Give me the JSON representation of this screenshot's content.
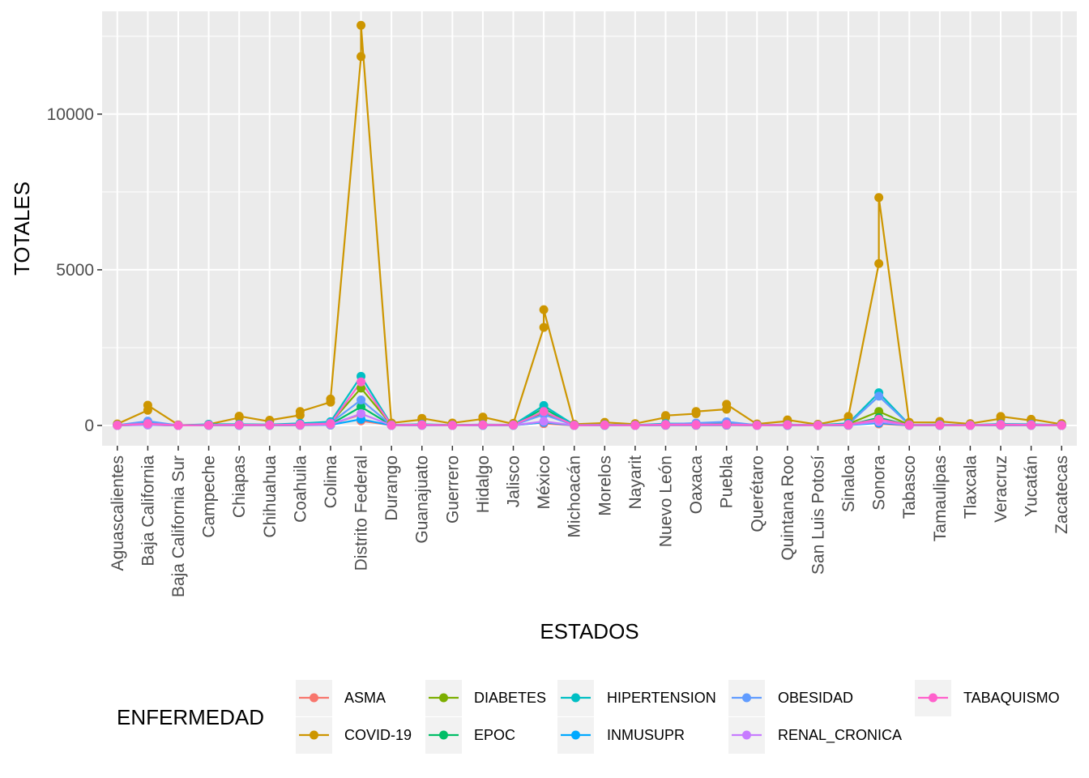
{
  "chart_data": {
    "type": "line",
    "xlabel": "ESTADOS",
    "ylabel": "TOTALES",
    "ylim": [
      -650,
      13300
    ],
    "yticks": [
      0,
      5000,
      10000
    ],
    "ytick_labels": [
      "0",
      "5000",
      "10000"
    ],
    "grid": true,
    "legend_title": "ENFERMEDAD",
    "legend_position": "bottom",
    "categories": [
      "Aguascalientes",
      "Baja California",
      "Baja California Sur",
      "Campeche",
      "Chiapas",
      "Chihuahua",
      "Coahuila",
      "Colima",
      "Distrito Federal",
      "Durango",
      "Guanajuato",
      "Guerrero",
      "Hidalgo",
      "Jalisco",
      "México",
      "Michoacán",
      "Morelos",
      "Nayarit",
      "Nuevo León",
      "Oaxaca",
      "Puebla",
      "Querétaro",
      "Quintana Roo",
      "San Luis Potosí",
      "Sinaloa",
      "Sonora",
      "Tabasco",
      "Tamaulipas",
      "Tlaxcala",
      "Veracruz",
      "Yucatán",
      "Zacatecas"
    ],
    "series": [
      {
        "name": "ASMA",
        "color": "#F8766D",
        "values": [
          [
            2,
            6
          ],
          [
            25,
            20
          ],
          [
            2,
            3
          ],
          [
            3,
            5
          ],
          [
            5,
            6
          ],
          [
            3,
            4
          ],
          [
            5,
            10
          ],
          [
            15,
            40
          ],
          [
            350,
            150
          ],
          [
            5,
            4
          ],
          [
            5,
            6
          ],
          [
            2,
            3
          ],
          [
            4,
            5
          ],
          [
            3,
            4
          ],
          [
            100,
            60
          ],
          [
            2,
            3
          ],
          [
            3,
            3
          ],
          [
            2,
            2
          ],
          [
            5,
            6
          ],
          [
            5,
            6
          ],
          [
            8,
            10
          ],
          [
            3,
            3
          ],
          [
            4,
            5
          ],
          [
            2,
            3
          ],
          [
            5,
            6
          ],
          [
            150,
            50
          ],
          [
            3,
            4
          ],
          [
            3,
            3
          ],
          [
            2,
            2
          ],
          [
            5,
            6
          ],
          [
            4,
            4
          ],
          [
            2,
            2
          ]
        ]
      },
      {
        "name": "COVID-19",
        "color": "#CD9600",
        "values": [
          [
            30,
            50
          ],
          [
            490,
            650
          ],
          [
            20,
            10
          ],
          [
            30,
            40
          ],
          [
            250,
            300
          ],
          [
            130,
            170
          ],
          [
            330,
            450
          ],
          [
            750,
            850
          ],
          [
            11850,
            12850
          ],
          [
            60,
            80
          ],
          [
            190,
            230
          ],
          [
            60,
            80
          ],
          [
            210,
            270
          ],
          [
            50,
            70
          ],
          [
            3150,
            3720
          ],
          [
            30,
            40
          ],
          [
            80,
            100
          ],
          [
            40,
            60
          ],
          [
            260,
            320
          ],
          [
            380,
            450
          ],
          [
            520,
            680
          ],
          [
            40,
            50
          ],
          [
            140,
            180
          ],
          [
            30,
            40
          ],
          [
            230,
            290
          ],
          [
            5200,
            7320
          ],
          [
            70,
            100
          ],
          [
            100,
            130
          ],
          [
            50,
            60
          ],
          [
            220,
            290
          ],
          [
            160,
            200
          ],
          [
            40,
            60
          ]
        ]
      },
      {
        "name": "DIABETES",
        "color": "#7CAE00",
        "values": [
          [
            10
          ],
          [
            60
          ],
          [
            5
          ],
          [
            20
          ],
          [
            30
          ],
          [
            25
          ],
          [
            50
          ],
          [
            80
          ],
          [
            1200
          ],
          [
            15
          ],
          [
            30
          ],
          [
            10
          ],
          [
            25
          ],
          [
            15
          ],
          [
            400
          ],
          [
            10
          ],
          [
            20
          ],
          [
            10
          ],
          [
            40
          ],
          [
            40
          ],
          [
            60
          ],
          [
            10
          ],
          [
            20
          ],
          [
            10
          ],
          [
            50
          ],
          [
            450
          ],
          [
            20
          ],
          [
            20
          ],
          [
            10
          ],
          [
            40
          ],
          [
            30
          ],
          [
            10
          ]
        ]
      },
      {
        "name": "EPOC",
        "color": "#00BE67",
        "values": [
          [
            5
          ],
          [
            30
          ],
          [
            3
          ],
          [
            10
          ],
          [
            15
          ],
          [
            10
          ],
          [
            20
          ],
          [
            40
          ],
          [
            600
          ],
          [
            5
          ],
          [
            15
          ],
          [
            5
          ],
          [
            10
          ],
          [
            10
          ],
          [
            550
          ],
          [
            5
          ],
          [
            10
          ],
          [
            5
          ],
          [
            20
          ],
          [
            20
          ],
          [
            30
          ],
          [
            5
          ],
          [
            10
          ],
          [
            5
          ],
          [
            20
          ],
          [
            250
          ],
          [
            10
          ],
          [
            10
          ],
          [
            5
          ],
          [
            20
          ],
          [
            15
          ],
          [
            5
          ]
        ]
      },
      {
        "name": "HIPERTENSION",
        "color": "#00BFC4",
        "values": [
          [
            15
          ],
          [
            80
          ],
          [
            8
          ],
          [
            40
          ],
          [
            40
          ],
          [
            30
          ],
          [
            70
          ],
          [
            120
          ],
          [
            1580
          ],
          [
            20
          ],
          [
            40
          ],
          [
            15
          ],
          [
            30
          ],
          [
            20
          ],
          [
            640
          ],
          [
            15
          ],
          [
            25
          ],
          [
            15
          ],
          [
            60
          ],
          [
            60
          ],
          [
            90
          ],
          [
            15
          ],
          [
            30
          ],
          [
            15
          ],
          [
            70
          ],
          [
            1050
          ],
          [
            25
          ],
          [
            30
          ],
          [
            15
          ],
          [
            50
          ],
          [
            40
          ],
          [
            15
          ]
        ]
      },
      {
        "name": "INMUSUPR",
        "color": "#00A9FF",
        "values": [
          [
            3
          ],
          [
            20
          ],
          [
            2
          ],
          [
            5
          ],
          [
            5
          ],
          [
            5
          ],
          [
            10
          ],
          [
            20
          ],
          [
            200
          ],
          [
            3
          ],
          [
            8
          ],
          [
            3
          ],
          [
            5
          ],
          [
            5
          ],
          [
            100
          ],
          [
            3
          ],
          [
            5
          ],
          [
            3
          ],
          [
            10
          ],
          [
            10
          ],
          [
            15
          ],
          [
            3
          ],
          [
            5
          ],
          [
            3
          ],
          [
            10
          ],
          [
            80
          ],
          [
            5
          ],
          [
            5
          ],
          [
            3
          ],
          [
            10
          ],
          [
            8
          ],
          [
            3
          ]
        ]
      },
      {
        "name": "OBESIDAD",
        "color": "#619CFF",
        "values": [
          [
            10
          ],
          [
            140
          ],
          [
            5
          ],
          [
            20
          ],
          [
            25
          ],
          [
            20
          ],
          [
            40
          ],
          [
            80
          ],
          [
            820
          ],
          [
            10
          ],
          [
            25
          ],
          [
            10
          ],
          [
            20
          ],
          [
            15
          ],
          [
            350
          ],
          [
            10
          ],
          [
            20
          ],
          [
            10
          ],
          [
            40
          ],
          [
            80
          ],
          [
            120
          ],
          [
            10
          ],
          [
            25
          ],
          [
            10
          ],
          [
            40
          ],
          [
            940
          ],
          [
            20
          ],
          [
            20
          ],
          [
            10
          ],
          [
            35
          ],
          [
            30
          ],
          [
            10
          ]
        ]
      },
      {
        "name": "RENAL_CRONICA",
        "color": "#C77CFF",
        "values": [
          [
            5
          ],
          [
            25
          ],
          [
            3
          ],
          [
            10
          ],
          [
            10
          ],
          [
            10
          ],
          [
            15
          ],
          [
            30
          ],
          [
            380
          ],
          [
            5
          ],
          [
            10
          ],
          [
            5
          ],
          [
            10
          ],
          [
            10
          ],
          [
            130
          ],
          [
            5
          ],
          [
            10
          ],
          [
            5
          ],
          [
            15
          ],
          [
            15
          ],
          [
            20
          ],
          [
            5
          ],
          [
            10
          ],
          [
            5
          ],
          [
            15
          ],
          [
            120
          ],
          [
            10
          ],
          [
            10
          ],
          [
            5
          ],
          [
            15
          ],
          [
            10
          ],
          [
            5
          ]
        ]
      },
      {
        "name": "TABAQUISMO",
        "color": "#FF61CC",
        "values": [
          [
            8
          ],
          [
            60
          ],
          [
            5
          ],
          [
            15
          ],
          [
            20
          ],
          [
            15
          ],
          [
            30
          ],
          [
            60
          ],
          [
            1400
          ],
          [
            10
          ],
          [
            25
          ],
          [
            8
          ],
          [
            20
          ],
          [
            15
          ],
          [
            450
          ],
          [
            8
          ],
          [
            15
          ],
          [
            8
          ],
          [
            30
          ],
          [
            30
          ],
          [
            40
          ],
          [
            8
          ],
          [
            20
          ],
          [
            8
          ],
          [
            30
          ],
          [
            200
          ],
          [
            15
          ],
          [
            15
          ],
          [
            8
          ],
          [
            30
          ],
          [
            20
          ],
          [
            8
          ]
        ]
      }
    ]
  }
}
